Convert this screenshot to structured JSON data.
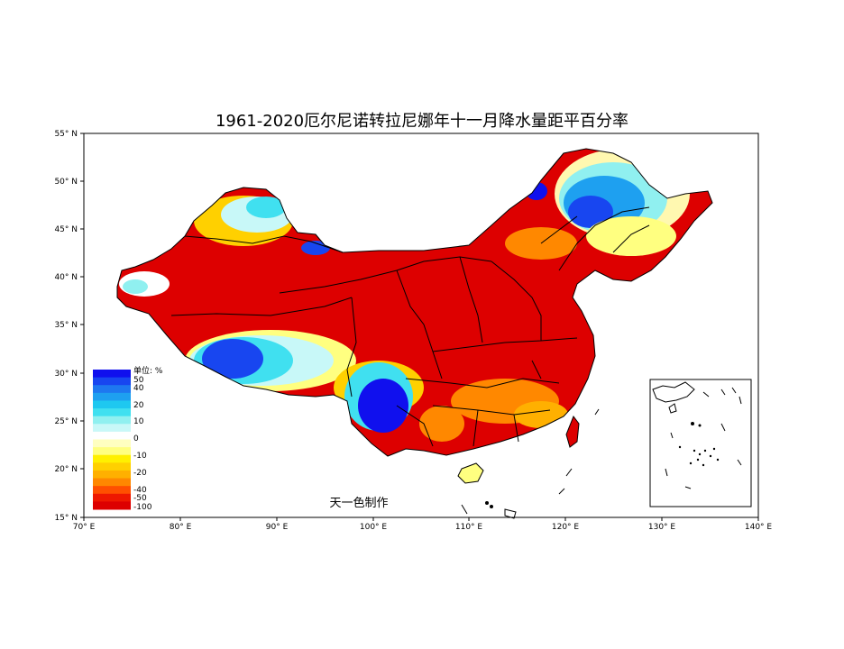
{
  "title": "1961-2020厄尔尼诺转拉尼娜年十一月降水量距平百分率",
  "credit": "天一色制作",
  "axes": {
    "x_ticks": [
      "70° E",
      "80° E",
      "90° E",
      "100° E",
      "110° E",
      "120° E",
      "130° E",
      "140° E"
    ],
    "y_ticks": [
      "55° N",
      "50° N",
      "45° N",
      "40° N",
      "35° N",
      "30° N",
      "25° N",
      "20° N",
      "15° N"
    ],
    "lon_range": [
      70,
      140
    ],
    "lat_range": [
      15,
      55
    ]
  },
  "legend": {
    "unit_label": "单位: %",
    "labels": [
      "50",
      "40",
      "20",
      "10",
      "0",
      "-10",
      "-20",
      "-40",
      "-50",
      "-100"
    ],
    "colors": [
      "#1010ee",
      "#1846f0",
      "#1e78f0",
      "#1ea0f0",
      "#1ec8f0",
      "#40e0f0",
      "#90f0f0",
      "#c8f8f8",
      "#ffffff",
      "#ffffc0",
      "#ffff80",
      "#fff000",
      "#ffd000",
      "#ffb000",
      "#ff8800",
      "#ff5000",
      "#ee1800",
      "#dd0000"
    ]
  },
  "colors": {
    "strong_dry": "#dd0000",
    "dry": "#ff8800",
    "wet": "#1ea0f0",
    "strong_wet": "#1010ee"
  }
}
